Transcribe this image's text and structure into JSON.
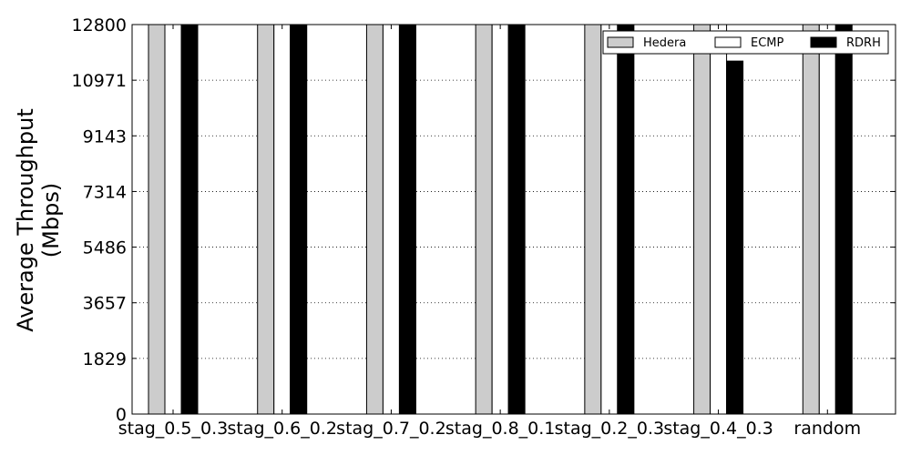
{
  "chart_data": {
    "type": "bar",
    "title": "",
    "xlabel": "",
    "ylabel_lines": [
      "Average Throughput",
      "(Mbps)"
    ],
    "categories": [
      "stag_0.5_0.3",
      "stag_0.6_0.2",
      "stag_0.7_0.2",
      "stag_0.8_0.1",
      "stag_0.2_0.3",
      "stag_0.4_0.3",
      "random"
    ],
    "ylim": [
      0,
      12800
    ],
    "yticks": [
      0,
      1829,
      3657,
      5486,
      7314,
      9143,
      10971,
      12800
    ],
    "grid": "horizontal-dotted",
    "legend_position": "top-right",
    "series": [
      {
        "name": "Hedera",
        "color": "#cccccc",
        "values": [
          12800,
          12800,
          12800,
          12800,
          12800,
          12800,
          12800
        ]
      },
      {
        "name": "ECMP",
        "color": "#ffffff",
        "values": [
          12800,
          12800,
          12800,
          12800,
          12800,
          12800,
          12800
        ]
      },
      {
        "name": "RDRH",
        "color": "#000000",
        "values": [
          12800,
          12800,
          12800,
          12800,
          12800,
          11600,
          12800
        ]
      }
    ]
  }
}
